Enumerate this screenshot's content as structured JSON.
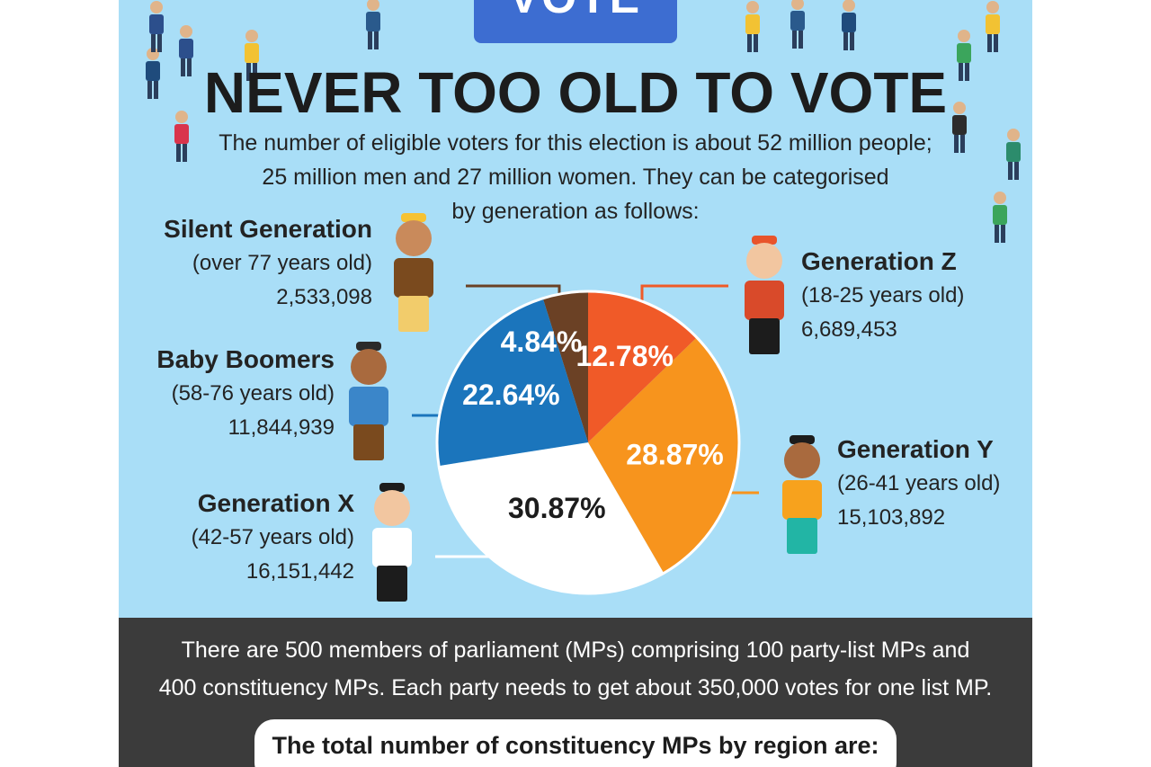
{
  "header": {
    "badge_text": "VOTE",
    "title": "NEVER TOO OLD TO VOTE",
    "intro_lines": [
      "The number of eligible voters for this election is about 52 million people;",
      "25 million men and 27 million women. They can be categorised",
      "by generation as follows:"
    ]
  },
  "colors": {
    "background": "#a9def7",
    "silent": "#6b4125",
    "gen_z": "#f05a28",
    "gen_y": "#f7941d",
    "gen_x": "#ffffff",
    "boomers": "#1b75bc",
    "dark_panel": "#3b3b3b"
  },
  "chart_data": {
    "type": "pie",
    "slices": [
      {
        "name": "Silent Generation",
        "ages": "(over 77 years old)",
        "count": "2,533,098",
        "value": 4.84,
        "label": "4.84%"
      },
      {
        "name": "Generation Z",
        "ages": "(18-25 years old)",
        "count": "6,689,453",
        "value": 12.78,
        "label": "12.78%"
      },
      {
        "name": "Generation Y",
        "ages": "(26-41 years old)",
        "count": "15,103,892",
        "value": 28.87,
        "label": "28.87%"
      },
      {
        "name": "Generation X",
        "ages": "(42-57 years old)",
        "count": "16,151,442",
        "value": 30.87,
        "label": "30.87%"
      },
      {
        "name": "Baby Boomers",
        "ages": "(58-76 years old)",
        "count": "11,844,939",
        "value": 22.64,
        "label": "22.64%"
      }
    ]
  },
  "footer": {
    "mps_lines": [
      "There are 500 members of parliament (MPs) comprising 100 party-list MPs and",
      "400 constituency MPs. Each party needs to get about 350,000 votes for one list MP."
    ],
    "region_heading": "The total number of constituency MPs by region are:"
  }
}
